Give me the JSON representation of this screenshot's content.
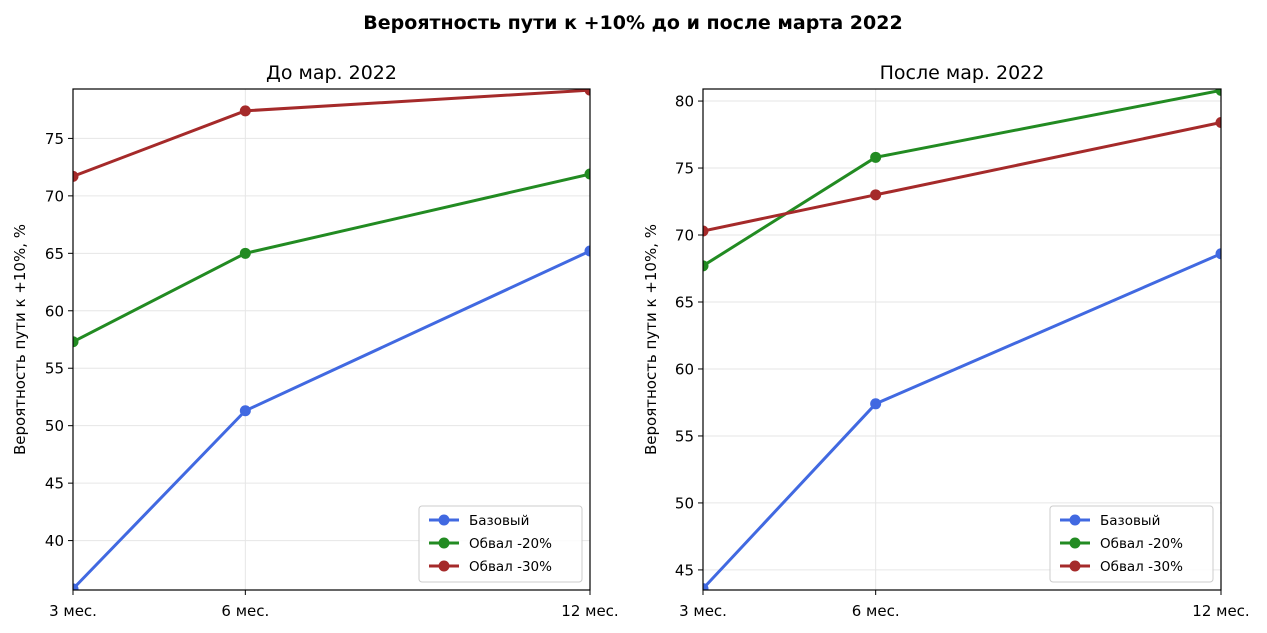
{
  "figure": {
    "title": "Вероятность пути к +10% до и после марта 2022"
  },
  "chart_data": [
    {
      "type": "line",
      "title": "До мар. 2022",
      "xlabel": "",
      "ylabel": "Вероятность пути к +10%, %",
      "x": [
        3,
        6,
        12
      ],
      "x_tick_labels": [
        "3 мес.",
        "6 мес.",
        "12 мес."
      ],
      "xlim": [
        3,
        12
      ],
      "ylim": [
        35.7,
        79.3
      ],
      "y_ticks": [
        40,
        45,
        50,
        55,
        60,
        65,
        70,
        75
      ],
      "grid": true,
      "legend_position": "lower right",
      "series": [
        {
          "name": "Базовый",
          "color": "#4169E1",
          "values": [
            35.8,
            51.3,
            65.2
          ]
        },
        {
          "name": "Обвал -20%",
          "color": "#228B22",
          "values": [
            57.3,
            65.0,
            71.9
          ]
        },
        {
          "name": "Обвал -30%",
          "color": "#A52A2A",
          "values": [
            71.7,
            77.4,
            79.2
          ]
        }
      ]
    },
    {
      "type": "line",
      "title": "После мар. 2022",
      "xlabel": "",
      "ylabel": "Вероятность пути к +10%, %",
      "x": [
        3,
        6,
        12
      ],
      "x_tick_labels": [
        "3 мес.",
        "6 мес.",
        "12 мес."
      ],
      "xlim": [
        3,
        12
      ],
      "ylim": [
        43.5,
        80.9
      ],
      "y_ticks": [
        45,
        50,
        55,
        60,
        65,
        70,
        75,
        80
      ],
      "grid": true,
      "legend_position": "lower right",
      "series": [
        {
          "name": "Базовый",
          "color": "#4169E1",
          "values": [
            43.6,
            57.4,
            68.6
          ]
        },
        {
          "name": "Обвал -20%",
          "color": "#228B22",
          "values": [
            67.7,
            75.8,
            80.8
          ]
        },
        {
          "name": "Обвал -30%",
          "color": "#A52A2A",
          "values": [
            70.3,
            73.0,
            78.4
          ]
        }
      ]
    }
  ]
}
